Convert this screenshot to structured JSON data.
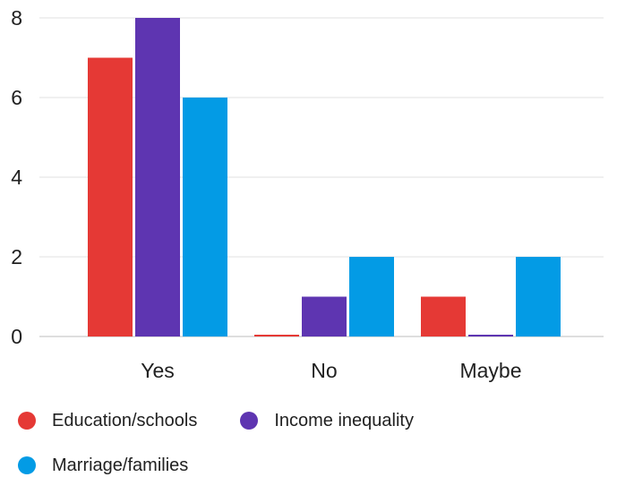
{
  "chart_data": {
    "type": "bar",
    "title": "",
    "xlabel": "",
    "ylabel": "",
    "categories": [
      "Yes",
      "No",
      "Maybe"
    ],
    "ylim": [
      0,
      8
    ],
    "yticks": [
      "0",
      "2",
      "4",
      "6",
      "8"
    ],
    "grid": true,
    "legend_position": "bottom",
    "series": [
      {
        "name": "Education/schools",
        "values": [
          7,
          0,
          1
        ],
        "color": "#e53935"
      },
      {
        "name": "Income inequality",
        "values": [
          8,
          1,
          0
        ],
        "color": "#5e35b1"
      },
      {
        "name": "Marriage/families",
        "values": [
          6,
          2,
          2
        ],
        "color": "#039be5"
      }
    ]
  }
}
